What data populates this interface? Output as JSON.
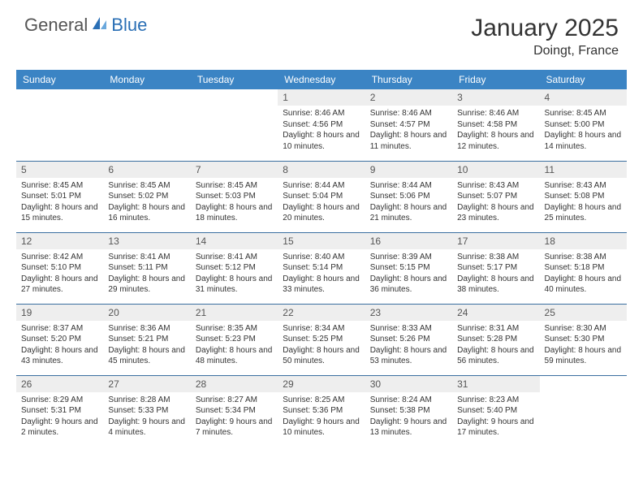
{
  "logo": {
    "text1": "General",
    "text2": "Blue"
  },
  "title": "January 2025",
  "location": "Doingt, France",
  "colors": {
    "header_bg": "#3b84c4",
    "header_text": "#ffffff",
    "daynum_bg": "#eeeeee",
    "row_divider": "#3b6fa0",
    "logo_blue": "#2a6fb5"
  },
  "day_headers": [
    "Sunday",
    "Monday",
    "Tuesday",
    "Wednesday",
    "Thursday",
    "Friday",
    "Saturday"
  ],
  "weeks": [
    [
      null,
      null,
      null,
      {
        "n": "1",
        "sr": "8:46 AM",
        "ss": "4:56 PM",
        "dl": "8 hours and 10 minutes."
      },
      {
        "n": "2",
        "sr": "8:46 AM",
        "ss": "4:57 PM",
        "dl": "8 hours and 11 minutes."
      },
      {
        "n": "3",
        "sr": "8:46 AM",
        "ss": "4:58 PM",
        "dl": "8 hours and 12 minutes."
      },
      {
        "n": "4",
        "sr": "8:45 AM",
        "ss": "5:00 PM",
        "dl": "8 hours and 14 minutes."
      }
    ],
    [
      {
        "n": "5",
        "sr": "8:45 AM",
        "ss": "5:01 PM",
        "dl": "8 hours and 15 minutes."
      },
      {
        "n": "6",
        "sr": "8:45 AM",
        "ss": "5:02 PM",
        "dl": "8 hours and 16 minutes."
      },
      {
        "n": "7",
        "sr": "8:45 AM",
        "ss": "5:03 PM",
        "dl": "8 hours and 18 minutes."
      },
      {
        "n": "8",
        "sr": "8:44 AM",
        "ss": "5:04 PM",
        "dl": "8 hours and 20 minutes."
      },
      {
        "n": "9",
        "sr": "8:44 AM",
        "ss": "5:06 PM",
        "dl": "8 hours and 21 minutes."
      },
      {
        "n": "10",
        "sr": "8:43 AM",
        "ss": "5:07 PM",
        "dl": "8 hours and 23 minutes."
      },
      {
        "n": "11",
        "sr": "8:43 AM",
        "ss": "5:08 PM",
        "dl": "8 hours and 25 minutes."
      }
    ],
    [
      {
        "n": "12",
        "sr": "8:42 AM",
        "ss": "5:10 PM",
        "dl": "8 hours and 27 minutes."
      },
      {
        "n": "13",
        "sr": "8:41 AM",
        "ss": "5:11 PM",
        "dl": "8 hours and 29 minutes."
      },
      {
        "n": "14",
        "sr": "8:41 AM",
        "ss": "5:12 PM",
        "dl": "8 hours and 31 minutes."
      },
      {
        "n": "15",
        "sr": "8:40 AM",
        "ss": "5:14 PM",
        "dl": "8 hours and 33 minutes."
      },
      {
        "n": "16",
        "sr": "8:39 AM",
        "ss": "5:15 PM",
        "dl": "8 hours and 36 minutes."
      },
      {
        "n": "17",
        "sr": "8:38 AM",
        "ss": "5:17 PM",
        "dl": "8 hours and 38 minutes."
      },
      {
        "n": "18",
        "sr": "8:38 AM",
        "ss": "5:18 PM",
        "dl": "8 hours and 40 minutes."
      }
    ],
    [
      {
        "n": "19",
        "sr": "8:37 AM",
        "ss": "5:20 PM",
        "dl": "8 hours and 43 minutes."
      },
      {
        "n": "20",
        "sr": "8:36 AM",
        "ss": "5:21 PM",
        "dl": "8 hours and 45 minutes."
      },
      {
        "n": "21",
        "sr": "8:35 AM",
        "ss": "5:23 PM",
        "dl": "8 hours and 48 minutes."
      },
      {
        "n": "22",
        "sr": "8:34 AM",
        "ss": "5:25 PM",
        "dl": "8 hours and 50 minutes."
      },
      {
        "n": "23",
        "sr": "8:33 AM",
        "ss": "5:26 PM",
        "dl": "8 hours and 53 minutes."
      },
      {
        "n": "24",
        "sr": "8:31 AM",
        "ss": "5:28 PM",
        "dl": "8 hours and 56 minutes."
      },
      {
        "n": "25",
        "sr": "8:30 AM",
        "ss": "5:30 PM",
        "dl": "8 hours and 59 minutes."
      }
    ],
    [
      {
        "n": "26",
        "sr": "8:29 AM",
        "ss": "5:31 PM",
        "dl": "9 hours and 2 minutes."
      },
      {
        "n": "27",
        "sr": "8:28 AM",
        "ss": "5:33 PM",
        "dl": "9 hours and 4 minutes."
      },
      {
        "n": "28",
        "sr": "8:27 AM",
        "ss": "5:34 PM",
        "dl": "9 hours and 7 minutes."
      },
      {
        "n": "29",
        "sr": "8:25 AM",
        "ss": "5:36 PM",
        "dl": "9 hours and 10 minutes."
      },
      {
        "n": "30",
        "sr": "8:24 AM",
        "ss": "5:38 PM",
        "dl": "9 hours and 13 minutes."
      },
      {
        "n": "31",
        "sr": "8:23 AM",
        "ss": "5:40 PM",
        "dl": "9 hours and 17 minutes."
      },
      null
    ]
  ],
  "labels": {
    "sunrise": "Sunrise:",
    "sunset": "Sunset:",
    "daylight": "Daylight:"
  }
}
